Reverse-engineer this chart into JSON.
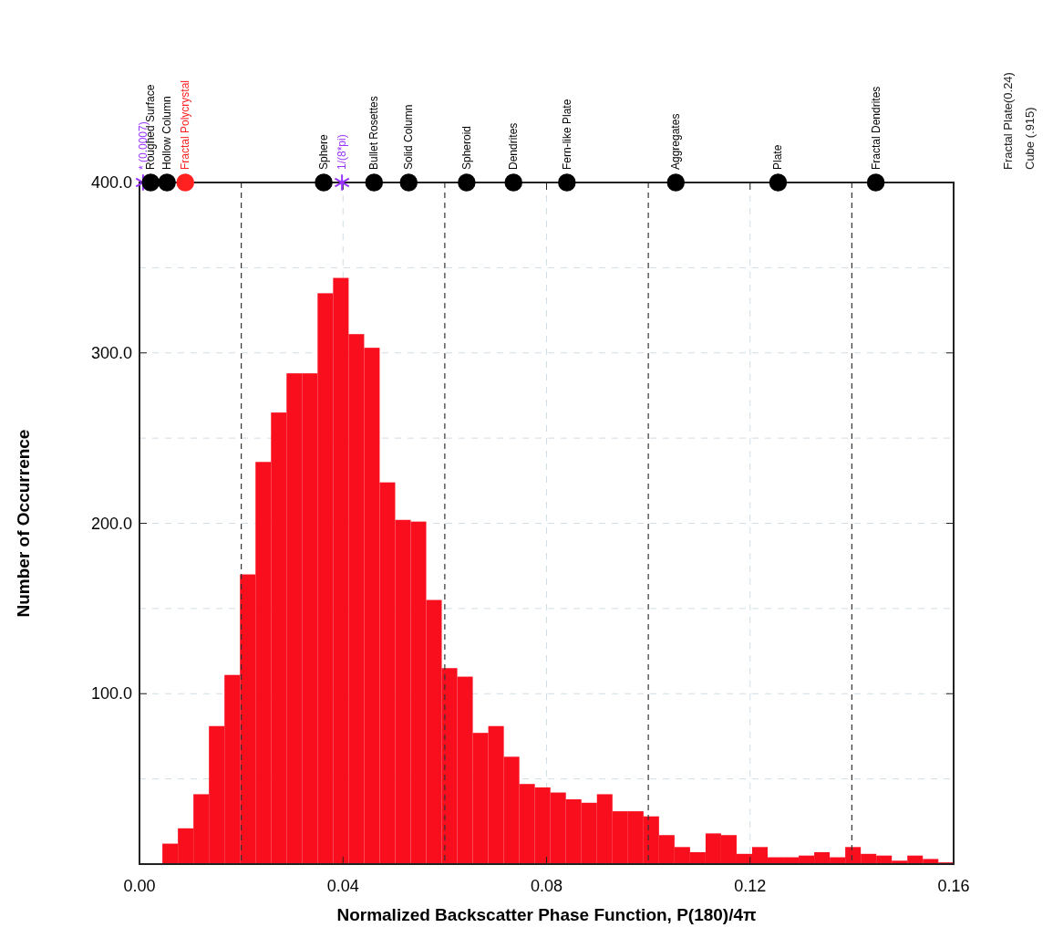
{
  "chart_data": {
    "type": "histogram",
    "xlabel": "Normalized Backscatter Phase Function, P(180)/4π",
    "ylabel": "Number of Occurrence",
    "bins": [
      0.0045,
      0.00755,
      0.0106,
      0.01365,
      0.0167,
      0.01975,
      0.0228,
      0.02585,
      0.0289,
      0.03195,
      0.035,
      0.03805,
      0.0411,
      0.04415,
      0.0472,
      0.05025,
      0.0533,
      0.05635,
      0.0594,
      0.06245,
      0.0655,
      0.06855,
      0.0716,
      0.07465,
      0.0777,
      0.08075,
      0.0838,
      0.08685,
      0.0899,
      0.09295,
      0.096,
      0.09905,
      0.1021,
      0.10515,
      0.1082,
      0.11125,
      0.1143,
      0.11735,
      0.1204,
      0.12345,
      0.1265,
      0.12955,
      0.1326,
      0.13565,
      0.1387,
      0.14175,
      0.1448,
      0.14785,
      0.1509,
      0.15395,
      0.157,
      0.16
    ],
    "values": [
      12,
      21,
      41,
      81,
      111,
      170,
      236,
      265,
      288,
      288,
      335,
      344,
      311,
      303,
      224,
      202,
      201,
      155,
      115,
      110,
      77,
      81,
      63,
      47,
      45,
      42,
      38,
      36,
      41,
      31,
      31,
      28,
      17,
      10,
      7,
      18,
      17,
      6,
      10,
      4,
      4,
      5,
      7,
      4,
      10,
      6,
      5,
      2,
      5,
      3,
      1
    ],
    "color": "#f90e1e",
    "series": [
      {
        "type": "scatter",
        "name": "* (0.0007)",
        "color": "#9933ff",
        "marker": "cross",
        "x": [
          0.0007
        ],
        "values": [
          400
        ]
      },
      {
        "type": "scatter",
        "name": "Roughed Surface",
        "color": "#000000",
        "marker": "circle",
        "x": [
          0.0022
        ],
        "values": [
          400
        ]
      },
      {
        "type": "scatter",
        "name": "Hollow Column",
        "color": "#000000",
        "marker": "circle",
        "x": [
          0.0054
        ],
        "values": [
          400
        ]
      },
      {
        "type": "scatter",
        "name": "Fractal Polycrystal",
        "color": "#ff2020",
        "marker": "circle",
        "x": [
          0.009
        ],
        "values": [
          400
        ]
      },
      {
        "type": "scatter",
        "name": "Sphere",
        "color": "#000000",
        "marker": "circle",
        "x": [
          0.0362
        ],
        "values": [
          400
        ]
      },
      {
        "type": "scatter",
        "name": "1/(8*pi)",
        "color": "#9933ff",
        "marker": "cross",
        "x": [
          0.0398
        ],
        "values": [
          400
        ]
      },
      {
        "type": "scatter",
        "name": "Bullet Rosettes",
        "color": "#000000",
        "marker": "circle",
        "x": [
          0.0461
        ],
        "values": [
          400
        ]
      },
      {
        "type": "scatter",
        "name": "Solid Column",
        "color": "#000000",
        "marker": "circle",
        "x": [
          0.0529
        ],
        "values": [
          400
        ]
      },
      {
        "type": "scatter",
        "name": "Spheroid",
        "color": "#000000",
        "marker": "circle",
        "x": [
          0.0643
        ],
        "values": [
          400
        ]
      },
      {
        "type": "scatter",
        "name": "Dendrites",
        "color": "#000000",
        "marker": "circle",
        "x": [
          0.0735
        ],
        "values": [
          400
        ]
      },
      {
        "type": "scatter",
        "name": "Fern-like Plate",
        "color": "#000000",
        "marker": "circle",
        "x": [
          0.084
        ],
        "values": [
          400
        ]
      },
      {
        "type": "scatter",
        "name": "Aggregates",
        "color": "#000000",
        "marker": "circle",
        "x": [
          0.1054
        ],
        "values": [
          400
        ]
      },
      {
        "type": "scatter",
        "name": "Plate",
        "color": "#000000",
        "marker": "circle",
        "x": [
          0.1255
        ],
        "values": [
          400
        ]
      },
      {
        "type": "scatter",
        "name": "Fractal Dendrites",
        "color": "#000000",
        "marker": "circle",
        "x": [
          0.1447
        ],
        "values": [
          400
        ]
      }
    ],
    "annotations": [
      "Fractal Plate(0.24)",
      "Cube (.915)"
    ],
    "ref_lines": [
      {
        "axis": "x",
        "value": 0.02,
        "color": "#333333",
        "line_style": "dashed"
      },
      {
        "axis": "x",
        "value": 0.06,
        "color": "#333333",
        "line_style": "dashed"
      },
      {
        "axis": "x",
        "value": 0.1,
        "color": "#333333",
        "line_style": "dashed"
      },
      {
        "axis": "x",
        "value": 0.14,
        "color": "#333333",
        "line_style": "dashed"
      }
    ],
    "xlim": [
      0,
      0.16
    ],
    "xticks": [
      {
        "value": 0,
        "label": "0.00"
      },
      {
        "value": 0.04,
        "label": "0.04"
      },
      {
        "value": 0.08,
        "label": "0.08"
      },
      {
        "value": 0.12,
        "label": "0.12"
      },
      {
        "value": 0.16,
        "label": "0.16"
      }
    ],
    "ylim": [
      0,
      400
    ],
    "yticks": [
      {
        "value": 50,
        "label": null
      },
      {
        "value": 100,
        "label": "100.0"
      },
      {
        "value": 150,
        "label": null
      },
      {
        "value": 200,
        "label": "200.0"
      },
      {
        "value": 250,
        "label": null
      },
      {
        "value": 300,
        "label": "300.0"
      },
      {
        "value": 350,
        "label": null
      },
      {
        "value": 400,
        "label": "400.0"
      }
    ],
    "grid": true
  }
}
